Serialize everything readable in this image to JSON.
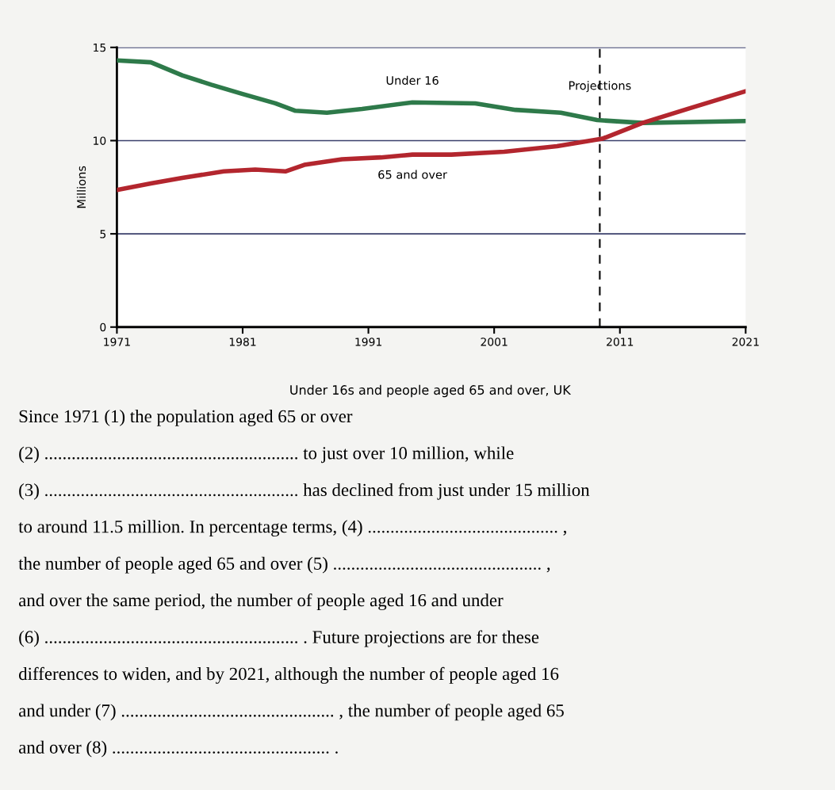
{
  "chart_data": {
    "type": "line",
    "title": "Under 16s and people aged 65 and over, UK",
    "ylabel": "Millions",
    "xlim": [
      1971,
      2021
    ],
    "xticks": [
      1971,
      1981,
      1991,
      2001,
      2011,
      2021
    ],
    "ylim": [
      0,
      15
    ],
    "yticks": [
      0,
      5,
      10,
      15
    ],
    "grid": "y",
    "legend": false,
    "marker": "none",
    "line_style": "solid",
    "series": [
      {
        "name": "Under 16",
        "color": "#2e7a4a",
        "x": [
          1971,
          1973.7,
          1976.2,
          1978.5,
          1981,
          1983.6,
          1985.2,
          1987.7,
          1990.5,
          1994.5,
          1999.5,
          2002.7,
          2006.3,
          2009.2,
          2012.8,
          2021
        ],
        "values": [
          14.3,
          14.2,
          13.5,
          13.0,
          12.5,
          12.0,
          11.6,
          11.5,
          11.7,
          12.05,
          12.0,
          11.65,
          11.5,
          11.1,
          10.95,
          11.05
        ]
      },
      {
        "name": "65 and over",
        "color": "#b3262e",
        "x": [
          1971,
          1973.7,
          1976.2,
          1979.5,
          1982,
          1984.4,
          1985.9,
          1988.9,
          1992,
          1994.5,
          1997.6,
          2001.8,
          2006,
          2009.6,
          2012.8,
          2016.4,
          2021
        ],
        "values": [
          7.35,
          7.7,
          8.0,
          8.35,
          8.45,
          8.35,
          8.7,
          9.0,
          9.1,
          9.25,
          9.25,
          9.4,
          9.7,
          10.1,
          10.95,
          11.7,
          12.65
        ]
      }
    ],
    "ref_lines": [
      {
        "axis": "x",
        "value": 2009.4,
        "label": "Projections",
        "color": "#111111",
        "line_style": "dashed"
      }
    ],
    "annotations": [
      "Since 1971 (1) the population aged 65 or over",
      "(2) ........................................................ to just over 10 million, while",
      "(3) ........................................................ has declined from just under 15 million",
      "to around 11.5 million. In percentage terms, (4) .......................................... ,",
      "the number of people aged 65 and over (5) .............................................. ,",
      "and over the same period, the number of people aged 16 and under",
      "(6) ........................................................ . Future projections are for these",
      "differences to widen, and by 2021, although the number of people aged 16",
      "and under (7) ............................................... , the number of people aged 65",
      "and over (8) ................................................ ."
    ]
  }
}
